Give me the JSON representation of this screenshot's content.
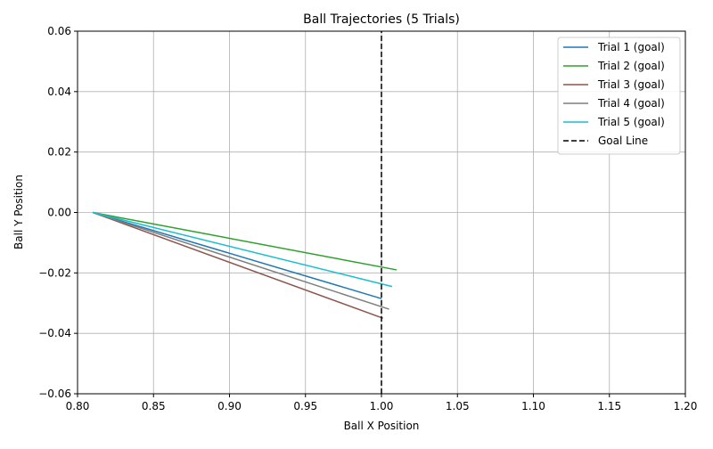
{
  "chart_data": {
    "type": "line",
    "title": "Ball Trajectories (5 Trials)",
    "xlabel": "Ball X Position",
    "ylabel": "Ball Y Position",
    "xlim": [
      0.8,
      1.2
    ],
    "ylim": [
      -0.06,
      0.06
    ],
    "xticks": [
      0.8,
      0.85,
      0.9,
      0.95,
      1.0,
      1.05,
      1.1,
      1.15,
      1.2
    ],
    "xtick_labels": [
      "0.80",
      "0.85",
      "0.90",
      "0.95",
      "1.00",
      "1.05",
      "1.10",
      "1.15",
      "1.20"
    ],
    "yticks": [
      -0.06,
      -0.04,
      -0.02,
      0.0,
      0.02,
      0.04,
      0.06
    ],
    "ytick_labels": [
      "−0.06",
      "−0.04",
      "−0.02",
      "0.00",
      "0.02",
      "0.04",
      "0.06"
    ],
    "grid": true,
    "legend_position": "top-right",
    "series": [
      {
        "name": "Trial 1 (goal)",
        "color": "#1f77b4",
        "dash": "solid",
        "x": [
          0.81,
          1.0
        ],
        "y": [
          0.0,
          -0.0285
        ]
      },
      {
        "name": "Trial 2 (goal)",
        "color": "#2ca02c",
        "dash": "solid",
        "x": [
          0.81,
          1.01
        ],
        "y": [
          0.0,
          -0.019
        ]
      },
      {
        "name": "Trial 3 (goal)",
        "color": "#8c564b",
        "dash": "solid",
        "x": [
          0.81,
          1.001
        ],
        "y": [
          0.0,
          -0.035
        ]
      },
      {
        "name": "Trial 4 (goal)",
        "color": "#7f7f7f",
        "dash": "solid",
        "x": [
          0.81,
          1.005
        ],
        "y": [
          0.0,
          -0.032
        ]
      },
      {
        "name": "Trial 5 (goal)",
        "color": "#17becf",
        "dash": "solid",
        "x": [
          0.81,
          1.007
        ],
        "y": [
          0.0,
          -0.0245
        ]
      },
      {
        "name": "Goal Line",
        "color": "#000000",
        "dash": "dashed",
        "x": [
          1.0,
          1.0
        ],
        "y": [
          -0.06,
          0.06
        ]
      }
    ]
  }
}
